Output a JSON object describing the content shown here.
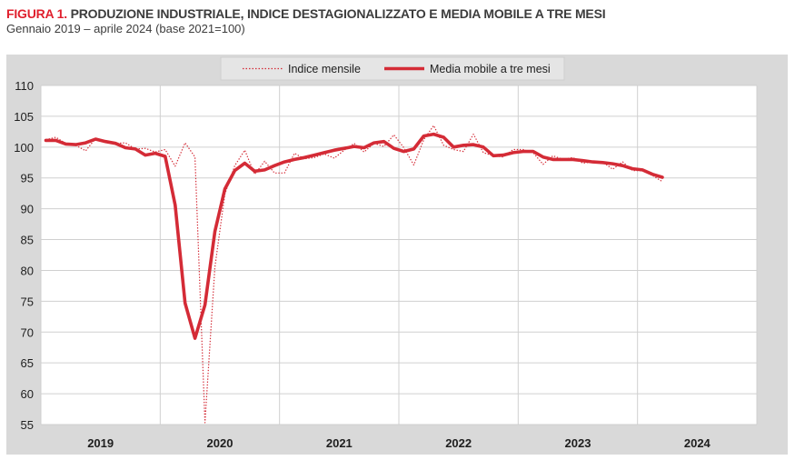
{
  "figure": {
    "label": "FIGURA 1.",
    "title": "PRODUZIONE INDUSTRIALE, INDICE DESTAGIONALIZZATO E MEDIA MOBILE A TRE MESI",
    "subtitle": "Gennaio 2019 – aprile 2024 (base 2021=100)"
  },
  "colors": {
    "accent": "#e0202e",
    "series_line": "#d42b36",
    "panel_bg": "#d9d9d9",
    "plot_bg": "#ffffff",
    "grid": "#d0d0d0"
  },
  "chart_data": {
    "type": "line",
    "title": "PRODUZIONE INDUSTRIALE, INDICE DESTAGIONALIZZATO E MEDIA MOBILE A TRE MESI",
    "subtitle": "Gennaio 2019 – aprile 2024 (base 2021=100)",
    "xlabel": "",
    "ylabel": "",
    "ylim": [
      55,
      110
    ],
    "yticks": [
      110,
      105,
      100,
      95,
      90,
      85,
      80,
      75,
      70,
      65,
      60,
      55
    ],
    "year_labels": [
      "2019",
      "2020",
      "2021",
      "2022",
      "2023",
      "2024"
    ],
    "x_start": "2019-01",
    "months_total": 72,
    "legend_position": "top-center",
    "grid": true,
    "series": [
      {
        "name": "Indice mensile",
        "style": "dotted",
        "color": "#d42b36",
        "start_month_index": 0,
        "values": [
          101.2,
          101.6,
          100.6,
          100.3,
          99.4,
          101.4,
          101.0,
          100.6,
          100.7,
          99.7,
          99.8,
          99.2,
          99.6,
          96.9,
          100.7,
          98.4,
          55.3,
          80.5,
          92.4,
          97.0,
          99.5,
          95.6,
          97.7,
          95.8,
          95.8,
          99.0,
          98.1,
          98.3,
          98.9,
          98.2,
          99.5,
          100.6,
          99.2,
          100.6,
          100.1,
          102.0,
          99.9,
          97.1,
          101.2,
          103.5,
          100.3,
          99.6,
          99.3,
          102.1,
          99.1,
          98.6,
          98.4,
          99.6,
          99.6,
          99.1,
          97.2,
          98.6,
          98.0,
          98.3,
          97.4,
          97.6,
          97.6,
          96.4,
          97.6,
          96.2,
          96.2,
          95.4,
          94.4
        ]
      },
      {
        "name": "Media mobile a tre mesi",
        "style": "solid",
        "color": "#d42b36",
        "start_month_index": 0,
        "values": [
          101.1,
          101.1,
          100.5,
          100.4,
          100.7,
          101.3,
          100.9,
          100.6,
          99.9,
          99.7,
          98.7,
          99.0,
          98.5,
          90.6,
          74.7,
          69.0,
          74.4,
          86.3,
          93.2,
          96.2,
          97.4,
          96.1,
          96.3,
          97.0,
          97.6,
          98.0,
          98.3,
          98.7,
          99.1,
          99.5,
          99.8,
          100.1,
          99.9,
          100.7,
          100.9,
          99.8,
          99.3,
          99.7,
          101.8,
          102.1,
          101.6,
          100.0,
          100.3,
          100.4,
          100.0,
          98.6,
          98.7,
          99.1,
          99.3,
          99.3,
          98.4,
          98.0,
          98.0,
          98.0,
          97.8,
          97.6,
          97.5,
          97.3,
          97.0,
          96.5,
          96.3,
          95.6,
          95.1
        ]
      }
    ]
  }
}
